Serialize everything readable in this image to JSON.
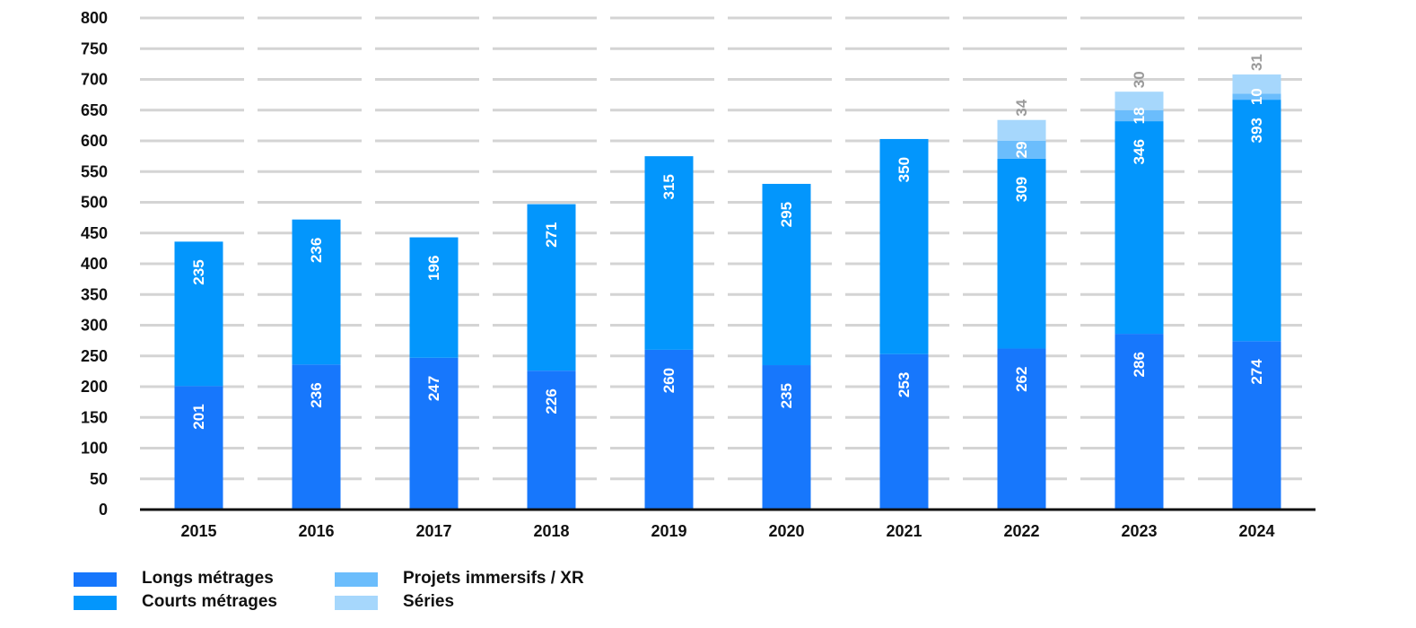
{
  "chart_data": {
    "type": "bar",
    "stacked": true,
    "categories": [
      "2015",
      "2016",
      "2017",
      "2018",
      "2019",
      "2020",
      "2021",
      "2022",
      "2023",
      "2024"
    ],
    "series": [
      {
        "name": "Longs métrages",
        "color": "#1777fc",
        "values": [
          201,
          236,
          247,
          226,
          260,
          235,
          253,
          262,
          286,
          274
        ]
      },
      {
        "name": "Courts métrages",
        "color": "#0396fc",
        "values": [
          235,
          236,
          196,
          271,
          315,
          295,
          350,
          309,
          346,
          393
        ]
      },
      {
        "name": "Projets immersifs / XR",
        "color": "#6bbdfc",
        "values": [
          0,
          0,
          0,
          0,
          0,
          0,
          0,
          29,
          18,
          10
        ]
      },
      {
        "name": "Séries",
        "color": "#a6d7fc",
        "values": [
          0,
          0,
          0,
          0,
          0,
          0,
          0,
          34,
          30,
          31
        ]
      }
    ],
    "yticks": [
      0,
      50,
      100,
      150,
      200,
      250,
      300,
      350,
      400,
      450,
      500,
      550,
      600,
      650,
      700,
      750,
      800
    ],
    "ylim": [
      0,
      800
    ],
    "grid": true,
    "legend_position": "bottom-left"
  }
}
